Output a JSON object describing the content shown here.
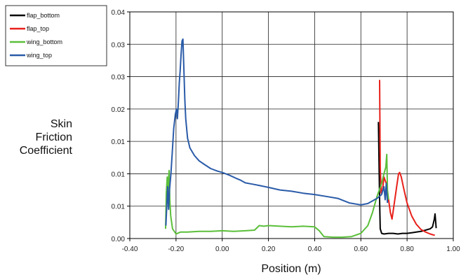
{
  "chart_data": {
    "type": "line",
    "xlabel": "Position (m)",
    "ylabel_lines": [
      "Skin",
      "Friction",
      "Coefficient"
    ],
    "xlim": [
      -0.4,
      1.0
    ],
    "ylim": [
      0,
      0.035
    ],
    "grid": true,
    "legend_position": "top-left",
    "x_ticks": [
      "-0.40",
      "-0.20",
      "0.00",
      "0.20",
      "0.40",
      "0.60",
      "0.80",
      "1.00"
    ],
    "y_ticks": [
      "0.00",
      "0.01",
      "0.01",
      "0.01",
      "0.02",
      "0.03",
      "0.03",
      "0.04"
    ],
    "series": [
      {
        "name": "flap_bottom",
        "color": "#000000",
        "points": [
          [
            0.676,
            0.018
          ],
          [
            0.678,
            0.013
          ],
          [
            0.681,
            0.006
          ],
          [
            0.684,
            0.0015
          ],
          [
            0.69,
            0.0008
          ],
          [
            0.7,
            0.0007
          ],
          [
            0.72,
            0.0008
          ],
          [
            0.74,
            0.0008
          ],
          [
            0.76,
            0.0007
          ],
          [
            0.78,
            0.0008
          ],
          [
            0.8,
            0.0008
          ],
          [
            0.82,
            0.0009
          ],
          [
            0.84,
            0.001
          ],
          [
            0.86,
            0.0011
          ],
          [
            0.88,
            0.0013
          ],
          [
            0.9,
            0.0015
          ],
          [
            0.91,
            0.0018
          ],
          [
            0.918,
            0.003
          ],
          [
            0.921,
            0.0038
          ],
          [
            0.924,
            0.0025
          ],
          [
            0.926,
            0.0016
          ]
        ]
      },
      {
        "name": "flap_top",
        "color": "#e8201a",
        "points": [
          [
            0.681,
            0.0245
          ],
          [
            0.684,
            0.011
          ],
          [
            0.688,
            0.007
          ],
          [
            0.694,
            0.0075
          ],
          [
            0.7,
            0.0095
          ],
          [
            0.71,
            0.0085
          ],
          [
            0.72,
            0.006
          ],
          [
            0.728,
            0.004
          ],
          [
            0.735,
            0.003
          ],
          [
            0.745,
            0.0055
          ],
          [
            0.755,
            0.008
          ],
          [
            0.763,
            0.01
          ],
          [
            0.768,
            0.0102
          ],
          [
            0.775,
            0.0095
          ],
          [
            0.785,
            0.0078
          ],
          [
            0.8,
            0.0055
          ],
          [
            0.82,
            0.0035
          ],
          [
            0.84,
            0.0022
          ],
          [
            0.86,
            0.0014
          ],
          [
            0.88,
            0.001
          ],
          [
            0.9,
            0.0007
          ],
          [
            0.92,
            0.0005
          ]
        ]
      },
      {
        "name": "wing_bottom",
        "color": "#5bbf3a",
        "points": [
          [
            -0.245,
            0.0015
          ],
          [
            -0.242,
            0.007
          ],
          [
            -0.238,
            0.0095
          ],
          [
            -0.236,
            0.0055
          ],
          [
            -0.233,
            0.009
          ],
          [
            -0.23,
            0.0105
          ],
          [
            -0.227,
            0.006
          ],
          [
            -0.223,
            0.0035
          ],
          [
            -0.215,
            0.0015
          ],
          [
            -0.2,
            0.0007
          ],
          [
            -0.18,
            0.001
          ],
          [
            -0.15,
            0.001
          ],
          [
            -0.1,
            0.0011
          ],
          [
            -0.05,
            0.0011
          ],
          [
            0.0,
            0.0012
          ],
          [
            0.05,
            0.0011
          ],
          [
            0.1,
            0.0012
          ],
          [
            0.14,
            0.0013
          ],
          [
            0.16,
            0.002
          ],
          [
            0.18,
            0.0019
          ],
          [
            0.2,
            0.002
          ],
          [
            0.25,
            0.0019
          ],
          [
            0.3,
            0.0018
          ],
          [
            0.35,
            0.0019
          ],
          [
            0.4,
            0.0018
          ],
          [
            0.42,
            0.0012
          ],
          [
            0.44,
            0.0003
          ],
          [
            0.48,
            0.0002
          ],
          [
            0.52,
            0.0002
          ],
          [
            0.56,
            0.0003
          ],
          [
            0.6,
            0.0008
          ],
          [
            0.63,
            0.002
          ],
          [
            0.65,
            0.004
          ],
          [
            0.67,
            0.0065
          ],
          [
            0.69,
            0.0085
          ],
          [
            0.7,
            0.01
          ],
          [
            0.708,
            0.011
          ],
          [
            0.712,
            0.013
          ],
          [
            0.715,
            0.0075
          ],
          [
            0.72,
            0.006
          ]
        ]
      },
      {
        "name": "wing_top",
        "color": "#2a5ba8",
        "points": [
          [
            -0.244,
            0.002
          ],
          [
            -0.24,
            0.005
          ],
          [
            -0.236,
            0.008
          ],
          [
            -0.232,
            0.0045
          ],
          [
            -0.228,
            0.0075
          ],
          [
            -0.222,
            0.01
          ],
          [
            -0.215,
            0.014
          ],
          [
            -0.21,
            0.017
          ],
          [
            -0.203,
            0.0192
          ],
          [
            -0.198,
            0.02
          ],
          [
            -0.194,
            0.0185
          ],
          [
            -0.19,
            0.021
          ],
          [
            -0.186,
            0.024
          ],
          [
            -0.182,
            0.026
          ],
          [
            -0.178,
            0.0285
          ],
          [
            -0.174,
            0.0305
          ],
          [
            -0.17,
            0.0308
          ],
          [
            -0.166,
            0.026
          ],
          [
            -0.162,
            0.0215
          ],
          [
            -0.158,
            0.0185
          ],
          [
            -0.15,
            0.0155
          ],
          [
            -0.14,
            0.014
          ],
          [
            -0.12,
            0.0128
          ],
          [
            -0.1,
            0.012
          ],
          [
            -0.08,
            0.0115
          ],
          [
            -0.05,
            0.0108
          ],
          [
            -0.02,
            0.0104
          ],
          [
            0.0,
            0.0102
          ],
          [
            0.03,
            0.0098
          ],
          [
            0.06,
            0.0093
          ],
          [
            0.08,
            0.009
          ],
          [
            0.1,
            0.0086
          ],
          [
            0.13,
            0.0084
          ],
          [
            0.16,
            0.0082
          ],
          [
            0.2,
            0.0079
          ],
          [
            0.25,
            0.0075
          ],
          [
            0.3,
            0.0073
          ],
          [
            0.35,
            0.007
          ],
          [
            0.4,
            0.0068
          ],
          [
            0.45,
            0.0065
          ],
          [
            0.5,
            0.0062
          ],
          [
            0.55,
            0.0055
          ],
          [
            0.6,
            0.0052
          ],
          [
            0.63,
            0.0054
          ],
          [
            0.65,
            0.0058
          ],
          [
            0.67,
            0.0062
          ],
          [
            0.69,
            0.0068
          ],
          [
            0.7,
            0.008
          ],
          [
            0.705,
            0.006
          ],
          [
            0.71,
            0.0085
          ],
          [
            0.715,
            0.0055
          ]
        ]
      }
    ]
  }
}
